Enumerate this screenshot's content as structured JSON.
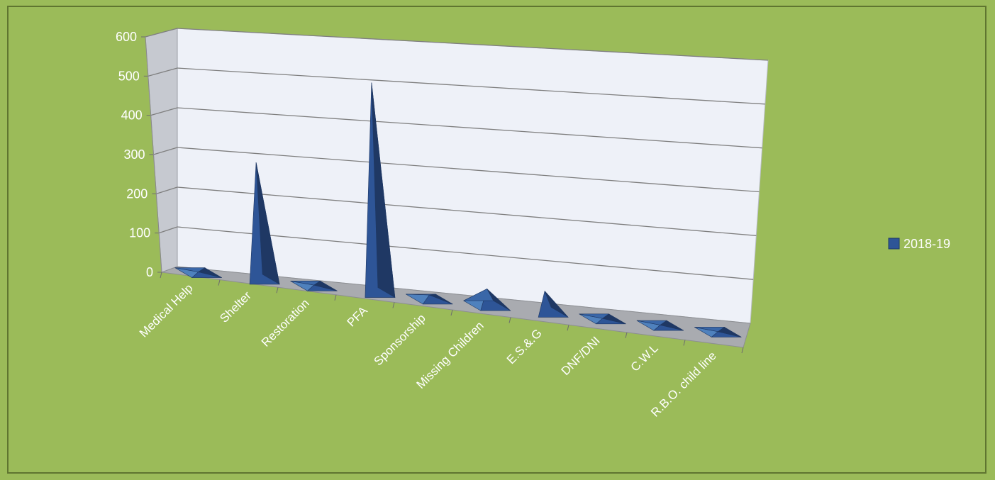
{
  "chart_data": {
    "type": "bar",
    "bar_shape": "pyramid",
    "three_d": true,
    "categories": [
      "Medical Help",
      "Shelter",
      "Restoration",
      "PFA",
      "Sponsorship",
      "Missing Children",
      "E.S.&.G",
      "DNF/DNI",
      "C.W.L",
      "R.B.O. child line"
    ],
    "series": [
      {
        "name": "2018-19",
        "values": [
          2,
          290,
          2,
          510,
          10,
          40,
          50,
          1,
          1,
          1
        ]
      }
    ],
    "yticks": [
      "0",
      "100",
      "200",
      "300",
      "400",
      "500",
      "600"
    ],
    "ylim": [
      0,
      600
    ],
    "grid": true,
    "legend_position": "right",
    "colors": {
      "background": "#9bbb59",
      "border": "#5f7530",
      "series": "#4f81bd",
      "series_dark": "#1f3864",
      "series_mid": "#2e5597",
      "wall": "#eef1f8",
      "side_wall": "#c6c9d0",
      "floor": "#a9abb0",
      "gridline": "#7f7f7f",
      "text": "#ffffff"
    }
  }
}
